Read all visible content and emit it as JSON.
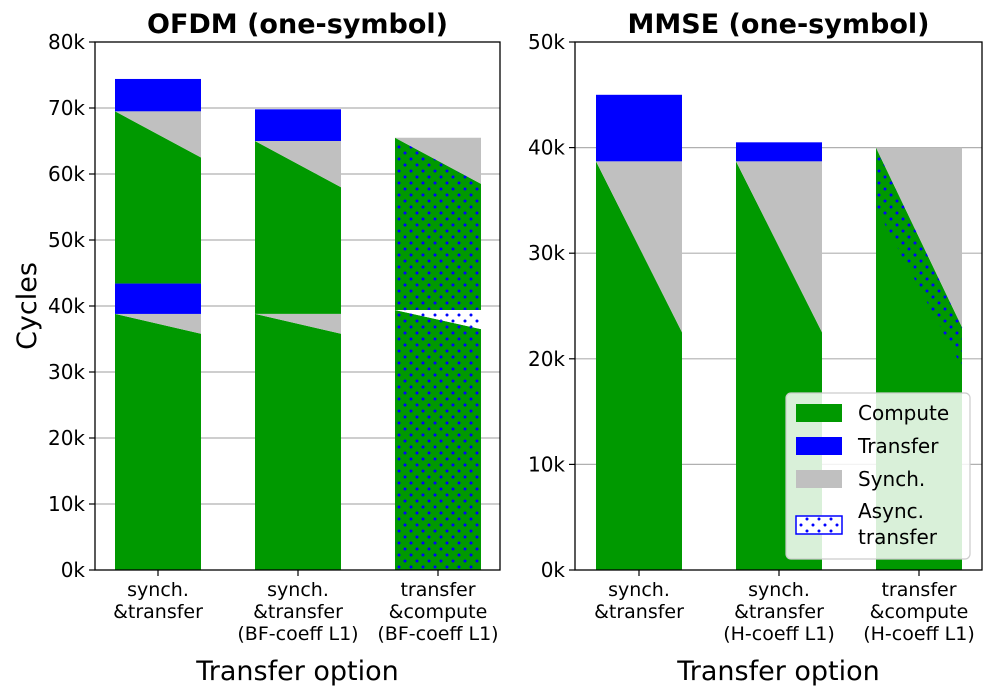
{
  "colors": {
    "compute": "#009900",
    "transfer": "#0000ff",
    "synch": "#c0c0c0",
    "async_dots": "#0000ff",
    "grid": "#b0b0b0"
  },
  "ylabel": "Cycles",
  "legend": {
    "compute": "Compute",
    "transfer": "Transfer",
    "synch": "Synch.",
    "async_line1": "Async.",
    "async_line2": " transfer"
  },
  "chart_data": [
    {
      "type": "bar",
      "title": "OFDM (one-symbol)",
      "xlabel": "Transfer option",
      "ylim": [
        0,
        80000
      ],
      "yticks": [
        0,
        10000,
        20000,
        30000,
        40000,
        50000,
        60000,
        70000,
        80000
      ],
      "ytick_labels": [
        "0k",
        "10k",
        "20k",
        "30k",
        "40k",
        "50k",
        "60k",
        "70k",
        "80k"
      ],
      "categories": [
        [
          "synch.",
          "&transfer"
        ],
        [
          "synch.",
          "&transfer",
          "(BF-coeff L1)"
        ],
        [
          "transfer",
          "&compute",
          "(BF-coeff L1)"
        ]
      ],
      "bars": [
        {
          "segments": [
            {
              "kind": "compute_trap",
              "y0": 0,
              "top_left": 38800,
              "top_right": 35800
            },
            {
              "kind": "synch_trap",
              "bot_left": 38800,
              "bot_right": 35800,
              "top": 38800
            },
            {
              "kind": "transfer",
              "y0": 38800,
              "y1": 43400
            },
            {
              "kind": "compute_trap",
              "y0": 43400,
              "top_left": 69500,
              "top_right": 62500
            },
            {
              "kind": "synch_trap",
              "bot_left": 69500,
              "bot_right": 62500,
              "top": 69500
            },
            {
              "kind": "transfer",
              "y0": 69500,
              "y1": 74400
            }
          ]
        },
        {
          "segments": [
            {
              "kind": "compute_trap",
              "y0": 0,
              "top_left": 38800,
              "top_right": 35800
            },
            {
              "kind": "synch_trap",
              "bot_left": 38800,
              "bot_right": 35800,
              "top": 38800
            },
            {
              "kind": "compute_trap",
              "y0": 38800,
              "top_left": 65000,
              "top_right": 58000
            },
            {
              "kind": "synch_trap",
              "bot_left": 65000,
              "bot_right": 58000,
              "top": 65000
            },
            {
              "kind": "transfer",
              "y0": 65000,
              "y1": 69800
            }
          ]
        },
        {
          "segments": [
            {
              "kind": "compute_trap",
              "y0": 0,
              "top_left": 39400,
              "top_right": 36500,
              "dotted": true
            },
            {
              "kind": "async_band",
              "bot_left": 39400,
              "bot_right": 36500,
              "top_left": 39400,
              "top_right": 39000
            },
            {
              "kind": "compute_trap",
              "y0": 39400,
              "top_left": 65500,
              "top_right": 58500,
              "dotted": true
            },
            {
              "kind": "synch_trap",
              "bot_left": 65500,
              "bot_right": 58500,
              "top": 65500
            }
          ]
        }
      ]
    },
    {
      "type": "bar",
      "title": "MMSE (one-symbol)",
      "xlabel": "Transfer option",
      "ylim": [
        0,
        50000
      ],
      "yticks": [
        0,
        10000,
        20000,
        30000,
        40000,
        50000
      ],
      "ytick_labels": [
        "0k",
        "10k",
        "20k",
        "30k",
        "40k",
        "50k"
      ],
      "categories": [
        [
          "synch.",
          "&transfer"
        ],
        [
          "synch.",
          "&transfer",
          "(H-coeff L1)"
        ],
        [
          "transfer",
          "&compute",
          "(H-coeff L1)"
        ]
      ],
      "bars": [
        {
          "segments": [
            {
              "kind": "compute_trap",
              "y0": 0,
              "top_left": 38700,
              "top_right": 22500
            },
            {
              "kind": "synch_trap",
              "bot_left": 38700,
              "bot_right": 22500,
              "top": 38700
            },
            {
              "kind": "transfer",
              "y0": 38700,
              "y1": 45000
            }
          ]
        },
        {
          "segments": [
            {
              "kind": "compute_trap",
              "y0": 0,
              "top_left": 38700,
              "top_right": 22500
            },
            {
              "kind": "synch_trap",
              "bot_left": 38700,
              "bot_right": 22500,
              "top": 38700
            },
            {
              "kind": "transfer",
              "y0": 38700,
              "y1": 40500
            }
          ]
        },
        {
          "segments": [
            {
              "kind": "compute_trap",
              "y0": 0,
              "top_left": 40000,
              "top_right": 23000,
              "dotted_wedge": true
            },
            {
              "kind": "synch_trap",
              "bot_left": 40000,
              "bot_right": 23000,
              "top": 40000
            }
          ]
        }
      ]
    }
  ]
}
